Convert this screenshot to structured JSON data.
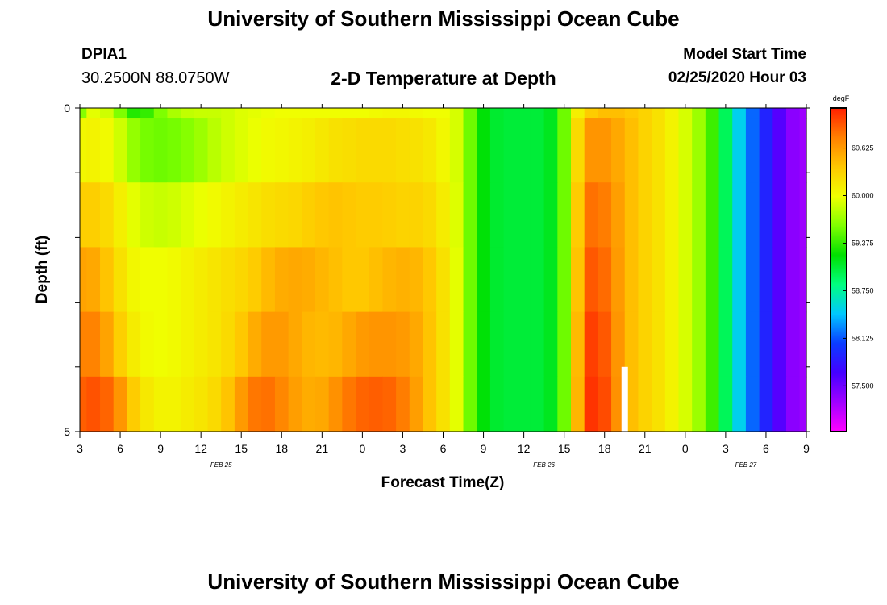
{
  "header": {
    "title": "University of Southern Mississippi Ocean Cube",
    "station_id": "DPIA1",
    "coordinates": "30.2500N 88.0750W",
    "subtitle": "2-D Temperature at Depth",
    "model_start_label": "Model Start Time",
    "model_start_value": "02/25/2020 Hour 03"
  },
  "footer": {
    "title": "University of Southern Mississippi Ocean Cube"
  },
  "colors": {
    "background": "#ffffff",
    "scale": [
      "#ff00ff",
      "#a000ff",
      "#4400ff",
      "#0a3cff",
      "#00c8ff",
      "#00ff80",
      "#00e000",
      "#80ff00",
      "#f0ff00",
      "#ffc800",
      "#ff8000",
      "#ff2000"
    ]
  },
  "chart_data": {
    "type": "heatmap",
    "title": "2-D Temperature at Depth",
    "xlabel": "Forecast Time(Z)",
    "ylabel": "Depth (ft)",
    "x_tick_labels": [
      "3",
      "6",
      "9",
      "12",
      "15",
      "18",
      "21",
      "0",
      "3",
      "6",
      "9",
      "12",
      "15",
      "18",
      "21",
      "0",
      "3",
      "6",
      "9"
    ],
    "x_hours_range": [
      0,
      54
    ],
    "date_labels": [
      {
        "hour": 10.5,
        "label": "FEB 25"
      },
      {
        "hour": 34.5,
        "label": "FEB 26"
      },
      {
        "hour": 49.5,
        "label": "FEB 27"
      }
    ],
    "y_tick_labels": [
      "0",
      "5"
    ],
    "ylim": [
      0,
      5
    ],
    "depth_layers": 5,
    "colorbar": {
      "unit": "degF",
      "min": 56.9,
      "max": 61.15,
      "labels": [
        "60.625",
        "60.000",
        "59.375",
        "58.750",
        "58.125",
        "57.500"
      ]
    },
    "layer_rows": [
      {
        "top": 0.0,
        "bottom": 0.15
      },
      {
        "top": 0.15,
        "bottom": 1.15
      },
      {
        "top": 1.15,
        "bottom": 2.15
      },
      {
        "top": 2.15,
        "bottom": 3.15
      },
      {
        "top": 3.15,
        "bottom": 4.15
      },
      {
        "top": 4.15,
        "bottom": 5.0
      }
    ],
    "hours": [
      0,
      0.5,
      1.5,
      2.5,
      3.5,
      4.5,
      5.5,
      6.5,
      7.5,
      8.5,
      9.5,
      10.5,
      11.5,
      12.5,
      13.5,
      14.5,
      15.5,
      16.5,
      17.5,
      18.5,
      19.5,
      20.5,
      21.5,
      22.5,
      23.5,
      24.5,
      25.5,
      26.5,
      27.5,
      28.5,
      29.5,
      30.5,
      31.5,
      32.5,
      33.5,
      34.5,
      35.5,
      36.5,
      37.5,
      38.5,
      39.5,
      40.5,
      41.5,
      42.5,
      43.5,
      44.5,
      45.5,
      46.5,
      47.5,
      48.5,
      49.5,
      50.5,
      51.5,
      52.5,
      53.5,
      54
    ],
    "values_degF": [
      [
        59.3,
        59.95,
        59.95,
        59.8,
        59.4,
        59.25,
        59.5,
        59.7,
        59.8,
        59.85,
        59.85,
        59.85,
        59.9,
        59.95,
        59.95,
        60.0,
        60.0,
        60.0,
        60.0,
        60.0,
        60.0,
        60.0,
        60.0,
        60.05,
        60.05,
        60.05,
        60.0,
        60.0,
        60.0,
        59.8,
        59.3,
        59.1,
        59.05,
        59.05,
        59.05,
        59.05,
        59.2,
        59.9,
        60.3,
        60.4,
        60.45,
        60.4,
        60.35,
        60.25,
        60.15,
        60.0,
        59.8,
        59.6,
        59.2,
        58.7,
        58.3,
        58.05,
        57.75,
        57.45,
        57.3,
        57.3
      ],
      [
        60.0,
        60.1,
        60.05,
        60.0,
        59.75,
        59.6,
        59.55,
        59.55,
        59.6,
        59.65,
        59.75,
        59.85,
        59.9,
        59.95,
        60.0,
        60.05,
        60.05,
        60.1,
        60.1,
        60.2,
        60.2,
        60.25,
        60.25,
        60.25,
        60.25,
        60.2,
        60.2,
        60.1,
        60.0,
        59.8,
        59.3,
        59.1,
        59.05,
        59.05,
        59.05,
        59.05,
        59.2,
        59.9,
        60.6,
        60.7,
        60.6,
        60.5,
        60.35,
        60.25,
        60.15,
        60.0,
        59.8,
        59.6,
        59.2,
        58.7,
        58.3,
        58.05,
        57.75,
        57.45,
        57.3,
        57.3
      ],
      [
        60.3,
        60.35,
        60.3,
        60.2,
        60.0,
        59.9,
        59.85,
        59.85,
        59.9,
        59.95,
        60.0,
        60.05,
        60.1,
        60.15,
        60.2,
        60.25,
        60.25,
        60.3,
        60.35,
        60.4,
        60.4,
        60.35,
        60.35,
        60.35,
        60.3,
        60.3,
        60.3,
        60.2,
        60.05,
        59.8,
        59.3,
        59.1,
        59.05,
        59.05,
        59.05,
        59.05,
        59.2,
        59.9,
        60.8,
        60.85,
        60.7,
        60.5,
        60.35,
        60.25,
        60.15,
        60.0,
        59.8,
        59.6,
        59.2,
        58.7,
        58.3,
        58.05,
        57.75,
        57.45,
        57.3,
        57.3
      ],
      [
        60.55,
        60.6,
        60.5,
        60.3,
        60.1,
        60.0,
        60.0,
        60.0,
        60.05,
        60.1,
        60.15,
        60.2,
        60.25,
        60.3,
        60.4,
        60.5,
        60.55,
        60.55,
        60.5,
        60.45,
        60.4,
        60.35,
        60.4,
        60.45,
        60.5,
        60.5,
        60.45,
        60.3,
        60.1,
        59.8,
        59.3,
        59.1,
        59.05,
        59.05,
        59.05,
        59.05,
        59.2,
        59.9,
        60.9,
        60.95,
        60.75,
        60.5,
        60.35,
        60.25,
        60.15,
        60.0,
        59.8,
        59.6,
        59.2,
        58.7,
        58.3,
        58.05,
        57.75,
        57.45,
        57.3,
        57.3
      ],
      [
        60.7,
        60.8,
        60.7,
        60.45,
        60.2,
        60.05,
        60.0,
        60.0,
        60.05,
        60.1,
        60.15,
        60.2,
        60.3,
        60.45,
        60.6,
        60.65,
        60.6,
        60.5,
        60.45,
        60.45,
        60.5,
        60.6,
        60.65,
        60.65,
        60.65,
        60.6,
        60.5,
        60.3,
        60.1,
        59.8,
        59.3,
        59.1,
        59.05,
        59.05,
        59.05,
        59.05,
        59.2,
        59.9,
        61.0,
        61.05,
        60.8,
        60.5,
        60.35,
        60.25,
        60.15,
        60.0,
        59.8,
        59.6,
        59.2,
        58.7,
        58.3,
        58.05,
        57.75,
        57.45,
        57.3,
        57.3
      ],
      [
        60.85,
        60.95,
        60.95,
        60.8,
        60.5,
        60.2,
        60.1,
        60.05,
        60.1,
        60.15,
        60.2,
        60.3,
        60.5,
        60.75,
        60.85,
        60.8,
        60.65,
        60.55,
        60.5,
        60.6,
        60.75,
        60.85,
        60.9,
        60.9,
        60.85,
        60.7,
        60.5,
        60.3,
        60.1,
        59.8,
        59.3,
        59.1,
        59.05,
        59.05,
        59.05,
        59.05,
        59.2,
        59.9,
        61.05,
        61.1,
        60.85,
        60.5,
        60.35,
        60.25,
        60.15,
        60.0,
        59.8,
        59.6,
        59.2,
        58.7,
        58.3,
        58.05,
        57.75,
        57.45,
        57.3,
        57.3
      ]
    ],
    "missing_cell": {
      "hour": 40.5,
      "depth_range": [
        4.0,
        5.0
      ]
    }
  }
}
